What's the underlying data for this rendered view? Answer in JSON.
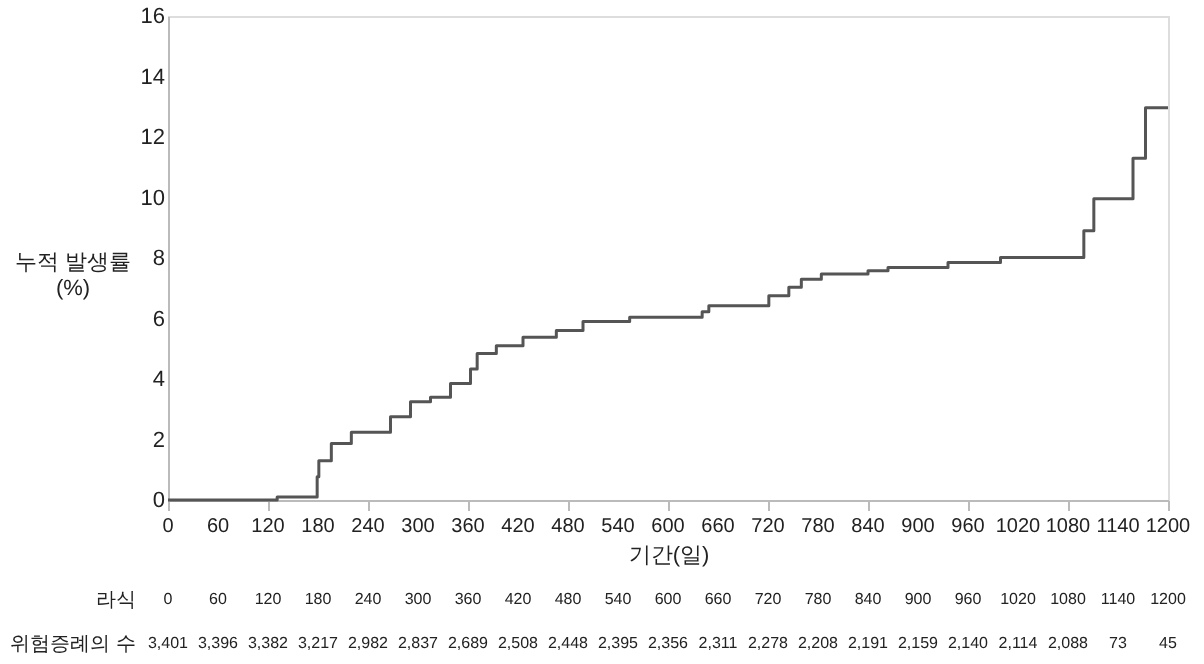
{
  "chart_data": {
    "type": "step",
    "xlabel": "기간(일)",
    "ylabel": "누적 발생률 (%)",
    "x": [
      0,
      117,
      131,
      179,
      181,
      196,
      220,
      243,
      267,
      291,
      315,
      339,
      363,
      371,
      394,
      426,
      466,
      498,
      554,
      641,
      649,
      721,
      745,
      760,
      784,
      840,
      864,
      936,
      999,
      1099,
      1111,
      1158,
      1173,
      1200
    ],
    "series": [
      {
        "color": "#555555",
        "values": [
          0,
          0,
          0.1,
          0.77,
          1.3,
          1.87,
          2.24,
          2.24,
          2.75,
          3.25,
          3.4,
          3.85,
          4.33,
          4.84,
          5.1,
          5.38,
          5.6,
          5.9,
          6.04,
          6.22,
          6.42,
          6.75,
          7.03,
          7.3,
          7.47,
          7.58,
          7.69,
          7.85,
          8.02,
          8.9,
          9.96,
          11.3,
          12.97,
          12.97
        ]
      }
    ],
    "xlim": [
      0,
      1200
    ],
    "xticks": [
      0,
      60,
      120,
      180,
      240,
      300,
      360,
      420,
      480,
      540,
      600,
      660,
      720,
      780,
      840,
      900,
      960,
      1020,
      1080,
      1140,
      1200
    ],
    "ylim": [
      0,
      16
    ],
    "yticks": [
      0,
      2,
      4,
      6,
      8,
      10,
      12,
      14,
      16
    ],
    "grid": false,
    "marker": "none",
    "line_style": "solid",
    "annotations": [
      "라식",
      "0",
      "60",
      "120",
      "180",
      "240",
      "300",
      "360",
      "420",
      "480",
      "540",
      "600",
      "660",
      "720",
      "780",
      "840",
      "900",
      "960",
      "1020",
      "1080",
      "1140",
      "1200",
      "위험증례의 수",
      "3,401",
      "3,396",
      "3,382",
      "3,217",
      "2,982",
      "2,837",
      "2,689",
      "2,508",
      "2,448",
      "2,395",
      "2,356",
      "2,311",
      "2,278",
      "2,208",
      "2,191",
      "2,159",
      "2,140",
      "2,114",
      "2,088",
      "73",
      "45"
    ]
  }
}
